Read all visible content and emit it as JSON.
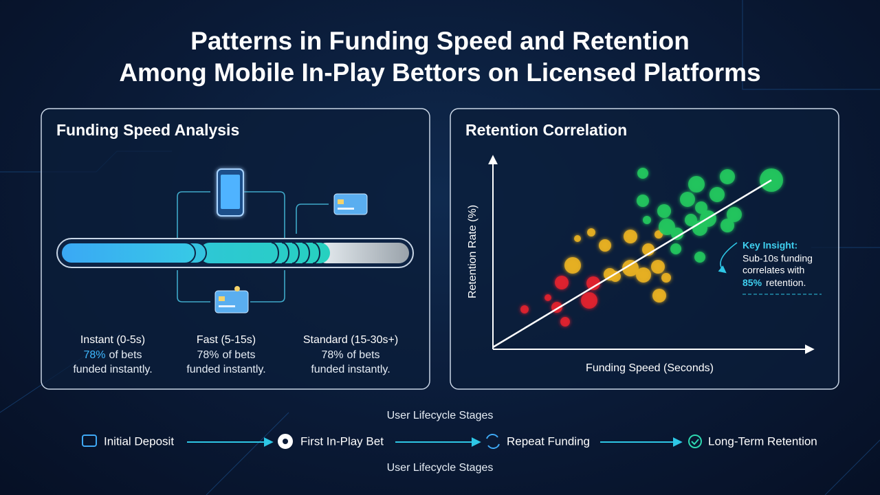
{
  "header": {
    "title_line1": "Patterns in Funding Speed and Retention",
    "title_line2": "Among Mobile In-Play Bettors on Licensed Platforms"
  },
  "funding_panel": {
    "title": "Funding Speed Analysis",
    "tiers": [
      {
        "label": "Instant (0-5s)",
        "highlight": "78%",
        "stat": "of bets",
        "stat2": "funded instantly."
      },
      {
        "label": "Fast (5-15s)",
        "highlight": "78%",
        "stat": "of bets",
        "stat2": "funded instantly."
      },
      {
        "label": "Standard (15-30s+)",
        "highlight": "78%",
        "stat": "of bets",
        "stat2": "funded instantly."
      }
    ]
  },
  "retention_panel": {
    "title": "Retention Correlation",
    "y_label": "Retention Rate (%)",
    "x_label": "Funding Speed (Seconds)",
    "insight": {
      "heading": "Key Insight:",
      "line1": "Sub-10s funding",
      "line2": "correlates with",
      "highlight": "85%",
      "line3": "retention."
    }
  },
  "lifecycle": {
    "title_top": "User Lifecycle Stages",
    "stages": [
      "Initial Deposit",
      "First In-Play Bet",
      "Repeat Funding",
      "Long-Term Retention"
    ],
    "title_bottom": "User Lifecycle Stages"
  }
}
